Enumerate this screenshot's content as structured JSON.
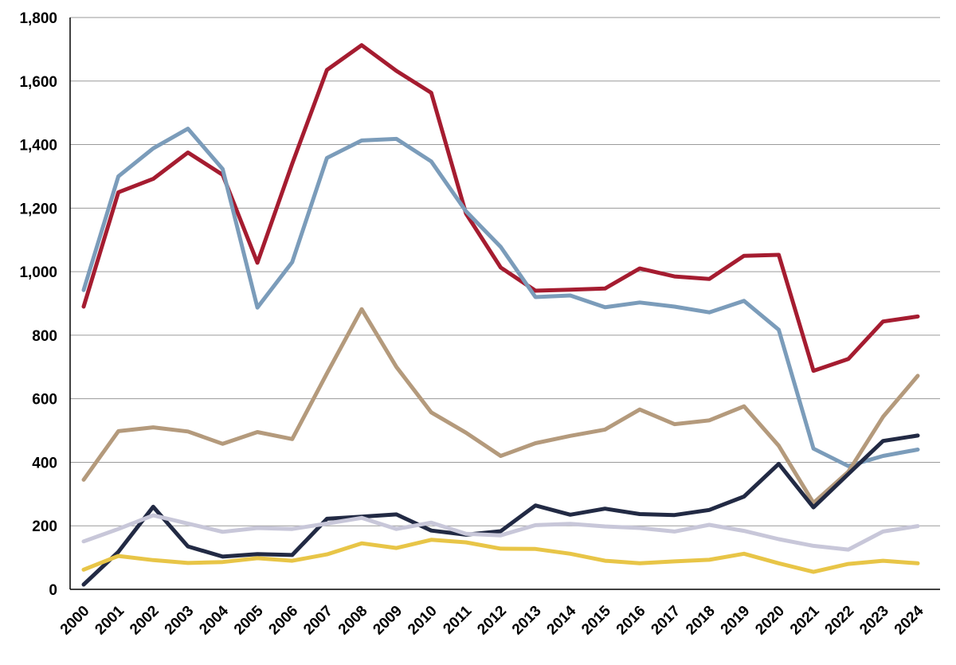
{
  "chart_data": {
    "type": "line",
    "title": "",
    "xlabel": "",
    "ylabel": "",
    "ylim": [
      0,
      1800
    ],
    "yticks": [
      0,
      200,
      400,
      600,
      800,
      1000,
      1200,
      1400,
      1600,
      1800
    ],
    "ytick_labels": [
      "0",
      "200",
      "400",
      "600",
      "800",
      "1,000",
      "1,200",
      "1,400",
      "1,600",
      "1,800"
    ],
    "grid": true,
    "legend": "none",
    "x": [
      "2000",
      "2001",
      "2002",
      "2003",
      "2004",
      "2005",
      "2006",
      "2007",
      "2008",
      "2009",
      "2010",
      "2011",
      "2012",
      "2013",
      "2014",
      "2015",
      "2016",
      "2017",
      "2018",
      "2019",
      "2020",
      "2021",
      "2022",
      "2023",
      "2024"
    ],
    "series": [
      {
        "color": "#a51c30",
        "values": [
          890,
          1250,
          1292,
          1375,
          1305,
          1028,
          1340,
          1635,
          1713,
          1632,
          1563,
          1183,
          1013,
          940,
          943,
          947,
          1010,
          985,
          977,
          1050,
          1053,
          688,
          725,
          843,
          859
        ]
      },
      {
        "color": "#7b9cba",
        "values": [
          942,
          1300,
          1388,
          1450,
          1323,
          887,
          1030,
          1358,
          1413,
          1418,
          1347,
          1190,
          1078,
          920,
          925,
          888,
          903,
          890,
          872,
          908,
          817,
          443,
          388,
          420,
          440
        ]
      },
      {
        "color": "#b49a7c",
        "values": [
          345,
          498,
          510,
          497,
          458,
          495,
          473,
          680,
          882,
          700,
          557,
          493,
          420,
          460,
          483,
          503,
          566,
          520,
          532,
          576,
          452,
          272,
          370,
          543,
          672
        ]
      },
      {
        "color": "#222a44",
        "values": [
          15,
          118,
          260,
          135,
          103,
          111,
          108,
          222,
          229,
          236,
          185,
          172,
          183,
          264,
          235,
          254,
          237,
          234,
          250,
          292,
          395,
          258,
          363,
          467,
          484
        ]
      },
      {
        "color": "#c8c7d9",
        "values": [
          151,
          190,
          233,
          207,
          181,
          193,
          190,
          207,
          225,
          190,
          210,
          175,
          170,
          202,
          206,
          198,
          193,
          182,
          203,
          184,
          158,
          137,
          125,
          182,
          199
        ]
      },
      {
        "color": "#e8c547",
        "values": [
          62,
          105,
          92,
          83,
          86,
          98,
          90,
          110,
          145,
          130,
          156,
          148,
          128,
          127,
          112,
          90,
          82,
          88,
          93,
          112,
          82,
          55,
          80,
          90,
          82
        ]
      }
    ]
  }
}
